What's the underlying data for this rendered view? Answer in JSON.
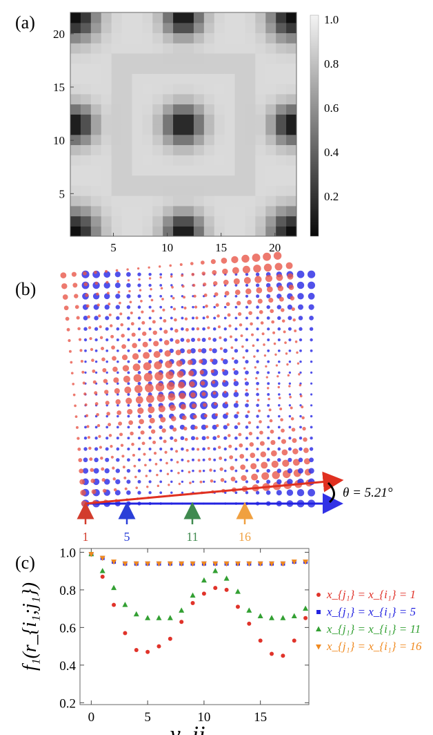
{
  "panel_labels": [
    "(a)",
    "(b)",
    "(c)"
  ],
  "chart_data": [
    {
      "type": "heatmap",
      "xlim": [
        1,
        22
      ],
      "ylim": [
        1,
        22
      ],
      "xticks": [
        "5",
        "10",
        "15",
        "20"
      ],
      "yticks": [
        "5",
        "10",
        "15",
        "20"
      ],
      "colorbar": {
        "range": [
          0,
          1
        ],
        "ticks": [
          "1.0",
          "0.8",
          "0.6",
          "0.4",
          "0.2"
        ],
        "colormap": "grayscale"
      },
      "grid": false
    },
    {
      "type": "scatter",
      "series": [
        {
          "color": "#e8584a"
        },
        {
          "color": "#3232e6"
        }
      ],
      "angle_label": "θ = 5.21°",
      "markers": [
        {
          "label": "1",
          "color": "#d23c2c"
        },
        {
          "label": "5",
          "color": "#2a3fd8"
        },
        {
          "label": "11",
          "color": "#3f8a4f"
        },
        {
          "label": "16",
          "color": "#f0a040"
        }
      ],
      "grid": false
    },
    {
      "type": "scatter",
      "ylabel": "f₁(r_{i₁;j₁})",
      "xlabel": "y_ij",
      "xlim": [
        -1,
        19.3
      ],
      "ylim": [
        0.19,
        1.02
      ],
      "xticks": [
        "0",
        "5",
        "10",
        "15"
      ],
      "yticks": [
        "1.0",
        "0.8",
        "0.6",
        "0.4",
        "0.2"
      ],
      "grid": false,
      "legend_position": "right",
      "x": [
        0,
        1,
        2,
        3,
        4,
        5,
        6,
        7,
        8,
        9,
        10,
        11,
        12,
        13,
        14,
        15,
        16,
        17,
        18,
        19
      ],
      "series": [
        {
          "name": "x_{j₁} = x_{i₁} = 1",
          "color": "#e0332a",
          "marker": "circle",
          "values": [
            0.99,
            0.87,
            0.72,
            0.57,
            0.48,
            0.47,
            0.5,
            0.54,
            0.63,
            0.73,
            0.78,
            0.81,
            0.8,
            0.71,
            0.62,
            0.53,
            0.46,
            0.45,
            0.53,
            0.65
          ]
        },
        {
          "name": "x_{j₁} = x_{i₁} = 5",
          "color": "#2323e0",
          "marker": "square",
          "values": [
            0.99,
            0.97,
            0.95,
            0.94,
            0.94,
            0.94,
            0.94,
            0.94,
            0.94,
            0.94,
            0.94,
            0.94,
            0.94,
            0.94,
            0.94,
            0.94,
            0.94,
            0.94,
            0.95,
            0.95
          ]
        },
        {
          "name": "x_{j₁} = x_{i₁} = 11",
          "color": "#33a033",
          "marker": "triangle-up",
          "values": [
            0.99,
            0.9,
            0.81,
            0.72,
            0.67,
            0.65,
            0.65,
            0.65,
            0.69,
            0.77,
            0.85,
            0.9,
            0.86,
            0.79,
            0.69,
            0.66,
            0.65,
            0.65,
            0.66,
            0.7
          ]
        },
        {
          "name": "x_{j₁} = x_{i₁} = 16",
          "color": "#f08a20",
          "marker": "triangle-down",
          "values": [
            0.99,
            0.97,
            0.95,
            0.94,
            0.94,
            0.94,
            0.94,
            0.94,
            0.94,
            0.94,
            0.94,
            0.94,
            0.94,
            0.94,
            0.94,
            0.94,
            0.94,
            0.94,
            0.95,
            0.95
          ]
        }
      ]
    }
  ]
}
